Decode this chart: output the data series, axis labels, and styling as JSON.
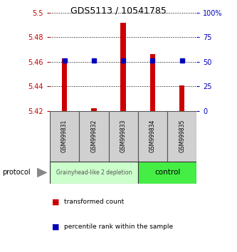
{
  "title": "GDS5113 / 10541785",
  "samples": [
    "GSM999831",
    "GSM999832",
    "GSM999833",
    "GSM999834",
    "GSM999835"
  ],
  "bar_bottom": 5.42,
  "bar_tops": [
    5.463,
    5.422,
    5.492,
    5.466,
    5.441
  ],
  "blue_dots": [
    5.461,
    5.461,
    5.461,
    5.461,
    5.461
  ],
  "ylim": [
    5.42,
    5.5
  ],
  "y_ticks_left": [
    5.42,
    5.44,
    5.46,
    5.48,
    5.5
  ],
  "y_ticks_right_vals": [
    0,
    25,
    50,
    75,
    100
  ],
  "y_ticks_right_labels": [
    "0",
    "25",
    "50",
    "75",
    "100%"
  ],
  "bar_color": "#cc0000",
  "dot_color": "#0000bb",
  "grid_color": "#000000",
  "group1_label": "Grainyhead-like 2 depletion",
  "group2_label": "control",
  "group1_color": "#ccffcc",
  "group2_color": "#44ee44",
  "group1_samples": [
    0,
    1,
    2
  ],
  "group2_samples": [
    3,
    4
  ],
  "protocol_label": "protocol",
  "legend_red_label": "transformed count",
  "legend_blue_label": "percentile rank within the sample",
  "left_tick_color": "#cc0000",
  "right_tick_color": "#0000bb"
}
